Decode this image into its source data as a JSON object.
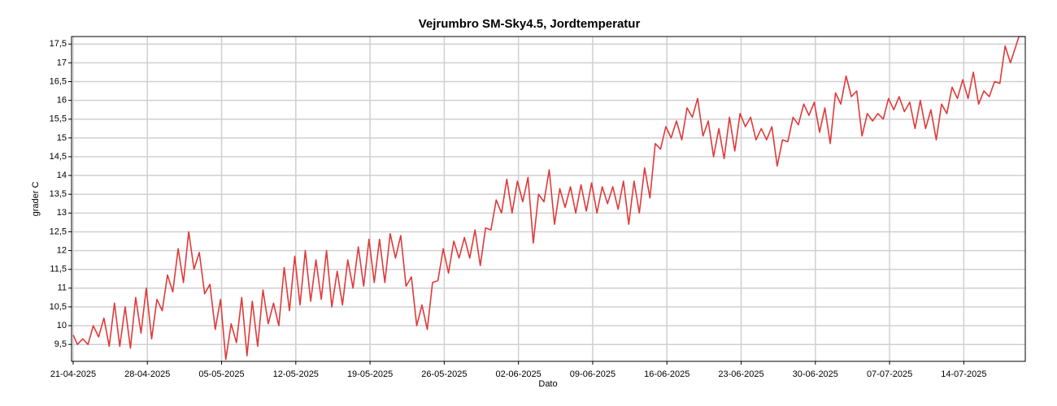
{
  "chart_data": {
    "type": "line",
    "title": "Vejrumbro SM-Sky4.5, Jordtemperatur",
    "x_label": "Dato",
    "y_label": "grader C",
    "xlim": [
      -0.15,
      89.8
    ],
    "ylim": [
      9.05,
      17.7
    ],
    "xticks": [
      {
        "value": 0,
        "label": "21-04-2025"
      },
      {
        "value": 7,
        "label": "28-04-2025"
      },
      {
        "value": 14,
        "label": "05-05-2025"
      },
      {
        "value": 21,
        "label": "12-05-2025"
      },
      {
        "value": 28,
        "label": "19-05-2025"
      },
      {
        "value": 35,
        "label": "26-05-2025"
      },
      {
        "value": 42,
        "label": "02-06-2025"
      },
      {
        "value": 49,
        "label": "09-06-2025"
      },
      {
        "value": 56,
        "label": "16-06-2025"
      },
      {
        "value": 63,
        "label": "23-06-2025"
      },
      {
        "value": 70,
        "label": "30-06-2025"
      },
      {
        "value": 77,
        "label": "07-07-2025"
      },
      {
        "value": 84,
        "label": "14-07-2025"
      }
    ],
    "yticks": [
      {
        "value": 9.5,
        "label": "9,5"
      },
      10,
      {
        "value": 10.5,
        "label": "10,5"
      },
      11,
      {
        "value": 11.5,
        "label": "11,5"
      },
      12,
      {
        "value": 12.5,
        "label": "12,5"
      },
      13,
      {
        "value": 13.5,
        "label": "13,5"
      },
      14,
      {
        "value": 14.5,
        "label": "14,5"
      },
      15,
      {
        "value": 15.5,
        "label": "15,5"
      },
      16,
      {
        "value": 16.5,
        "label": "16,5"
      },
      17,
      {
        "value": 17.5,
        "label": "17,5"
      }
    ],
    "grid": true,
    "x": [
      0,
      0.4,
      0.9,
      1.4,
      1.9,
      2.4,
      2.9,
      3.4,
      3.9,
      4.4,
      4.9,
      5.4,
      5.9,
      6.4,
      6.9,
      7.4,
      7.9,
      8.4,
      8.9,
      9.4,
      9.9,
      10.4,
      10.9,
      11.4,
      11.9,
      12.4,
      12.9,
      13.4,
      13.9,
      14.4,
      14.9,
      15.4,
      15.9,
      16.4,
      16.9,
      17.4,
      17.9,
      18.4,
      18.9,
      19.4,
      19.9,
      20.4,
      20.9,
      21.4,
      21.9,
      22.4,
      22.9,
      23.4,
      23.9,
      24.4,
      24.9,
      25.4,
      25.9,
      26.4,
      26.9,
      27.4,
      27.9,
      28.4,
      28.9,
      29.4,
      29.9,
      30.4,
      30.9,
      31.4,
      31.9,
      32.4,
      32.9,
      33.4,
      33.9,
      34.4,
      34.9,
      35.4,
      35.9,
      36.4,
      36.9,
      37.4,
      37.9,
      38.4,
      38.9,
      39.4,
      39.9,
      40.4,
      40.9,
      41.4,
      41.9,
      42.4,
      42.9,
      43.4,
      43.9,
      44.4,
      44.9,
      45.4,
      45.9,
      46.4,
      46.9,
      47.4,
      47.9,
      48.4,
      48.9,
      49.4,
      49.9,
      50.4,
      50.9,
      51.4,
      51.9,
      52.4,
      52.9,
      53.4,
      53.9,
      54.4,
      54.9,
      55.4,
      55.9,
      56.4,
      56.9,
      57.4,
      57.9,
      58.4,
      58.9,
      59.4,
      59.9,
      60.4,
      60.9,
      61.4,
      61.9,
      62.4,
      62.9,
      63.4,
      63.9,
      64.4,
      64.9,
      65.4,
      65.9,
      66.4,
      66.9,
      67.4,
      67.9,
      68.4,
      68.9,
      69.4,
      69.9,
      70.4,
      70.9,
      71.4,
      71.9,
      72.4,
      72.9,
      73.4,
      73.9,
      74.4,
      74.9,
      75.4,
      75.9,
      76.4,
      76.9,
      77.4,
      77.9,
      78.4,
      78.9,
      79.4,
      79.9,
      80.4,
      80.9,
      81.4,
      81.9,
      82.4,
      82.9,
      83.4,
      83.9,
      84.4,
      84.9,
      85.4,
      85.9,
      86.4,
      86.9,
      87.4,
      87.9,
      88.4,
      89.2,
      89.8
    ],
    "series": [
      {
        "color": "#e03a3a",
        "values": [
          9.75,
          9.5,
          9.65,
          9.5,
          10.0,
          9.7,
          10.2,
          9.45,
          10.6,
          9.45,
          10.5,
          9.4,
          10.75,
          9.8,
          11.0,
          9.65,
          10.7,
          10.4,
          11.35,
          10.9,
          12.05,
          11.15,
          12.5,
          11.5,
          11.95,
          10.85,
          11.1,
          9.9,
          10.7,
          9.1,
          10.05,
          9.55,
          10.75,
          9.2,
          10.65,
          9.45,
          10.95,
          10.05,
          10.6,
          10.0,
          11.55,
          10.4,
          11.85,
          10.55,
          12.0,
          10.65,
          11.75,
          10.7,
          12.0,
          10.5,
          11.45,
          10.55,
          11.75,
          11.0,
          12.1,
          11.05,
          12.3,
          11.15,
          12.3,
          11.15,
          12.45,
          11.8,
          12.4,
          11.05,
          11.3,
          10.0,
          10.55,
          9.9,
          11.15,
          11.2,
          12.05,
          11.4,
          12.25,
          11.8,
          12.35,
          11.8,
          12.55,
          11.6,
          12.6,
          12.55,
          13.35,
          13.0,
          13.9,
          13.0,
          13.85,
          13.3,
          13.95,
          12.2,
          13.5,
          13.3,
          14.15,
          12.7,
          13.65,
          13.15,
          13.7,
          13.0,
          13.75,
          13.05,
          13.8,
          13.0,
          13.7,
          13.25,
          13.7,
          13.1,
          13.85,
          12.7,
          13.85,
          13.0,
          14.2,
          13.4,
          14.85,
          14.7,
          15.3,
          15.0,
          15.45,
          14.95,
          15.8,
          15.55,
          16.05,
          15.05,
          15.45,
          14.5,
          15.25,
          14.45,
          15.55,
          14.65,
          15.65,
          15.3,
          15.55,
          14.95,
          15.25,
          14.95,
          15.3,
          14.25,
          14.95,
          14.9,
          15.55,
          15.35,
          15.9,
          15.6,
          15.95,
          15.15,
          15.8,
          14.85,
          16.2,
          15.9,
          16.65,
          16.1,
          16.25,
          15.05,
          15.65,
          15.45,
          15.65,
          15.5,
          16.05,
          15.75,
          16.1,
          15.7,
          15.95,
          15.25,
          16.0,
          15.25,
          15.75,
          14.95,
          15.9,
          15.65,
          16.35,
          16.05,
          16.55,
          16.05,
          16.75,
          15.9,
          16.25,
          16.1,
          16.5,
          16.45,
          17.45,
          17.0,
          17.7,
          17.7
        ]
      }
    ]
  }
}
